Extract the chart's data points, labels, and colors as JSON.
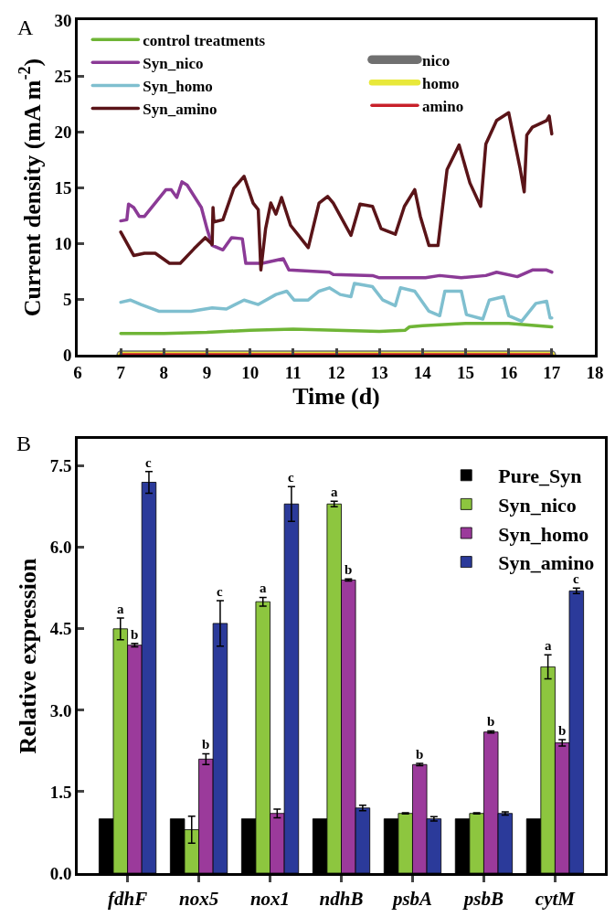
{
  "chart_data": [
    {
      "type": "line",
      "xlabel": "Time (d)",
      "ylabel": "Current density (mA m$^{-2}$)",
      "annotations": [
        "A"
      ],
      "xlim": [
        6,
        18
      ],
      "xticks": [
        6,
        7,
        8,
        9,
        10,
        11,
        12,
        13,
        14,
        15,
        16,
        17,
        18
      ],
      "ylim": [
        0,
        30
      ],
      "yticks": [
        0,
        5,
        10,
        15,
        20,
        25,
        30
      ],
      "grid": false,
      "legend": "top",
      "marker": "none",
      "line_style": "solid",
      "series": [
        {
          "name": "control treatments",
          "color": "#6fb536",
          "x": [
            7,
            8,
            9,
            10,
            11,
            12,
            13,
            13.6,
            13.7,
            14,
            15,
            16,
            17
          ],
          "values": [
            1.9,
            1.9,
            2.0,
            2.2,
            2.3,
            2.2,
            2.1,
            2.2,
            2.5,
            2.6,
            2.8,
            2.8,
            2.5
          ]
        },
        {
          "name": "Syn_nico",
          "color": "#8b3a96",
          "x": [
            7,
            7.14,
            7.18,
            7.3,
            7.43,
            7.55,
            8.05,
            8.17,
            8.3,
            8.42,
            8.54,
            8.87,
            9.0,
            9.12,
            9.37,
            9.57,
            9.82,
            9.9,
            10.28,
            10.77,
            10.9,
            11.84,
            11.93,
            12.84,
            13.0,
            14.07,
            14.4,
            14.9,
            15.47,
            15.72,
            16.2,
            16.55,
            16.88,
            17
          ],
          "values": [
            12.0,
            12.1,
            13.5,
            13.2,
            12.4,
            12.4,
            14.8,
            14.8,
            14.1,
            15.5,
            15.2,
            13.2,
            11.3,
            9.8,
            9.4,
            10.5,
            10.4,
            8.2,
            8.2,
            8.6,
            7.6,
            7.4,
            7.2,
            7.1,
            6.9,
            6.9,
            7.1,
            6.9,
            7.1,
            7.4,
            7.0,
            7.6,
            7.6,
            7.4
          ]
        },
        {
          "name": "Syn_homo",
          "color": "#7fbfcf",
          "x": [
            7,
            7.22,
            7.47,
            7.88,
            8.63,
            9.12,
            9.45,
            9.86,
            10.19,
            10.6,
            10.85,
            11.02,
            11.35,
            11.6,
            11.84,
            12.09,
            12.34,
            12.42,
            12.84,
            13.08,
            13.37,
            13.49,
            13.82,
            14.15,
            14.4,
            14.52,
            14.9,
            15.02,
            15.4,
            15.55,
            15.88,
            16.0,
            16.3,
            16.63,
            16.88,
            16.96,
            17
          ],
          "values": [
            4.7,
            4.9,
            4.5,
            3.9,
            3.9,
            4.2,
            4.1,
            4.9,
            4.5,
            5.4,
            5.7,
            4.9,
            4.9,
            5.7,
            6.0,
            5.4,
            5.2,
            6.4,
            6.1,
            4.9,
            4.4,
            6.0,
            5.7,
            3.9,
            3.5,
            5.7,
            5.7,
            3.6,
            3.2,
            4.9,
            5.2,
            3.5,
            3.0,
            4.6,
            4.8,
            3.3,
            3.3
          ]
        },
        {
          "name": "Syn_amino",
          "color": "#5a1418",
          "x": [
            7,
            7.3,
            7.55,
            7.8,
            8.13,
            8.38,
            8.7,
            8.96,
            9.12,
            9.14,
            9.16,
            9.37,
            9.62,
            9.86,
            10.07,
            10.19,
            10.25,
            10.36,
            10.48,
            10.6,
            10.73,
            10.94,
            11.35,
            11.6,
            11.8,
            11.93,
            12.34,
            12.55,
            12.84,
            13.04,
            13.37,
            13.58,
            13.82,
            13.95,
            14.15,
            14.36,
            14.57,
            14.85,
            15.1,
            15.35,
            15.47,
            15.72,
            16.0,
            16.26,
            16.36,
            16.42,
            16.55,
            16.88,
            16.94,
            17
          ],
          "values": [
            11.0,
            8.9,
            9.1,
            9.1,
            8.2,
            8.2,
            9.5,
            10.5,
            9.9,
            13.2,
            11.9,
            12.1,
            14.9,
            16.0,
            13.6,
            13.0,
            7.6,
            11.3,
            13.6,
            12.6,
            14.1,
            11.6,
            9.6,
            13.6,
            14.2,
            13.6,
            10.7,
            13.5,
            13.3,
            11.3,
            10.8,
            13.3,
            14.8,
            12.4,
            9.8,
            9.8,
            16.6,
            18.8,
            15.4,
            13.3,
            18.9,
            21.0,
            21.7,
            16.8,
            14.6,
            19.7,
            20.4,
            21.0,
            21.4,
            19.8
          ]
        },
        {
          "name": "nico",
          "color": "#707070",
          "x": [
            7,
            17
          ],
          "values": [
            0,
            0
          ]
        },
        {
          "name": "homo",
          "color": "#e8e83a",
          "x": [
            7,
            17
          ],
          "values": [
            0,
            0
          ]
        },
        {
          "name": "amino",
          "color": "#c8202a",
          "x": [
            7,
            17
          ],
          "values": [
            0,
            0
          ]
        }
      ]
    },
    {
      "type": "bar",
      "ylabel": "Relative expression",
      "annotations": [
        "B"
      ],
      "categories": [
        "fdhF",
        "nox5",
        "nox1",
        "ndhB",
        "psbA",
        "psbB",
        "cytM"
      ],
      "ylim": [
        0,
        8
      ],
      "yticks": [
        {
          "value": 0,
          "label": "0.0"
        },
        1.5,
        {
          "value": 3,
          "label": "3.0"
        },
        4.5,
        {
          "value": 6,
          "label": "6.0"
        },
        7.5
      ],
      "grid": false,
      "legend": "top right",
      "series": [
        {
          "name": "Pure_Syn",
          "color": "#000000",
          "values": [
            1.0,
            1.0,
            1.0,
            1.0,
            1.0,
            1.0,
            1.0
          ]
        },
        {
          "name": "Syn_nico",
          "color": "#8dc63f",
          "values": [
            4.5,
            0.8,
            5.0,
            6.8,
            1.1,
            1.1,
            3.8
          ],
          "errors": [
            0.2,
            0.25,
            0.08,
            0.05,
            0.01,
            0.01,
            0.22
          ],
          "value_labels": [
            "a",
            null,
            "a",
            "a",
            null,
            null,
            "a"
          ]
        },
        {
          "name": "Syn_homo",
          "color": "#9b3a9b",
          "values": [
            4.2,
            2.1,
            1.1,
            5.4,
            2.0,
            2.6,
            2.4
          ],
          "errors": [
            0.03,
            0.1,
            0.08,
            0.02,
            0.02,
            0.02,
            0.06
          ],
          "value_labels": [
            "b",
            "b",
            null,
            "b",
            "b",
            "b",
            "b"
          ]
        },
        {
          "name": "Syn_amino",
          "color": "#2b3a9a",
          "values": [
            7.2,
            4.6,
            6.8,
            1.2,
            1.0,
            1.1,
            5.2
          ],
          "errors": [
            0.2,
            0.42,
            0.32,
            0.05,
            0.04,
            0.03,
            0.05
          ],
          "value_labels": [
            "c",
            "c",
            "c",
            null,
            null,
            null,
            "c"
          ]
        }
      ]
    }
  ]
}
